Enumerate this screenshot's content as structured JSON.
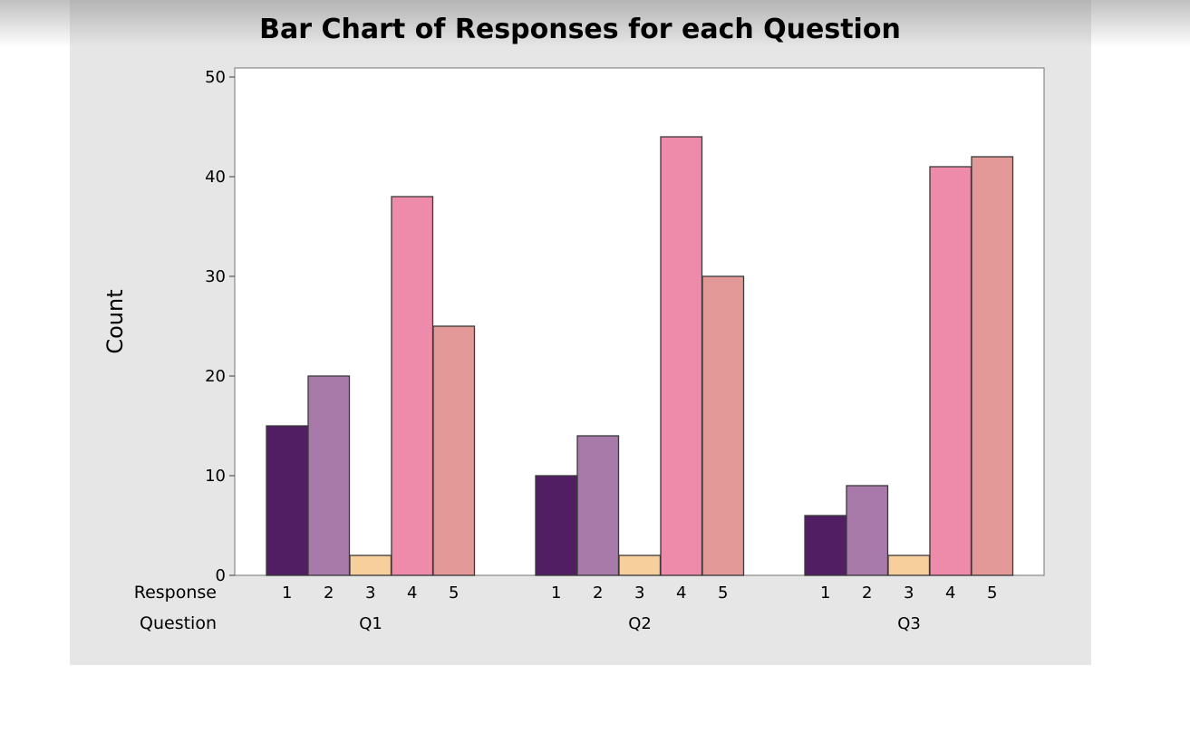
{
  "chart_data": {
    "type": "bar",
    "title": "Bar Chart of Responses for each Question",
    "ylabel": "Count",
    "ylim": [
      0,
      50
    ],
    "yticks": [
      0,
      10,
      20,
      30,
      40,
      50
    ],
    "row_labels": {
      "response": "Response",
      "question": "Question"
    },
    "responses": [
      "1",
      "2",
      "3",
      "4",
      "5"
    ],
    "groups": [
      {
        "question": "Q1",
        "values": [
          15,
          20,
          2,
          38,
          25
        ]
      },
      {
        "question": "Q2",
        "values": [
          10,
          14,
          2,
          44,
          30
        ]
      },
      {
        "question": "Q3",
        "values": [
          6,
          9,
          2,
          41,
          42
        ]
      }
    ],
    "colors": [
      "#521e63",
      "#a87aaa",
      "#f7cf9c",
      "#ee8aaa",
      "#e29998"
    ],
    "grid": false
  }
}
